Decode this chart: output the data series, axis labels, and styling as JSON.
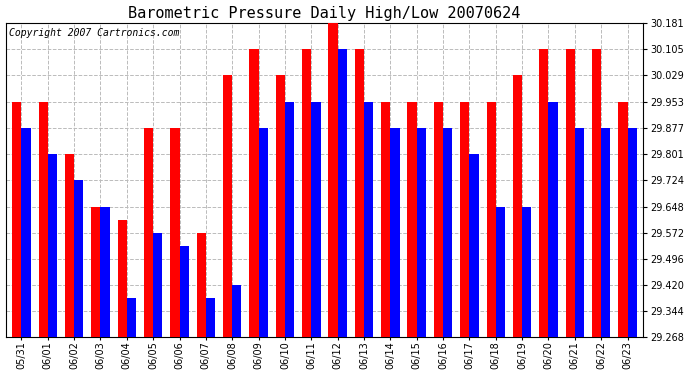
{
  "title": "Barometric Pressure Daily High/Low 20070624",
  "copyright": "Copyright 2007 Cartronics.com",
  "dates": [
    "05/31",
    "06/01",
    "06/02",
    "06/03",
    "06/04",
    "06/05",
    "06/06",
    "06/07",
    "06/08",
    "06/09",
    "06/10",
    "06/11",
    "06/12",
    "06/13",
    "06/14",
    "06/15",
    "06/16",
    "06/17",
    "06/18",
    "06/19",
    "06/20",
    "06/21",
    "06/22",
    "06/23"
  ],
  "highs": [
    29.953,
    29.953,
    29.801,
    29.648,
    29.61,
    29.877,
    29.877,
    29.572,
    30.029,
    30.105,
    30.029,
    30.105,
    30.181,
    30.105,
    29.953,
    29.953,
    29.953,
    29.953,
    29.953,
    30.029,
    30.105,
    30.105,
    30.105,
    29.953
  ],
  "lows": [
    29.877,
    29.801,
    29.724,
    29.648,
    29.382,
    29.572,
    29.534,
    29.382,
    29.42,
    29.877,
    29.953,
    29.953,
    30.105,
    29.953,
    29.877,
    29.877,
    29.877,
    29.801,
    29.648,
    29.648,
    29.953,
    29.877,
    29.877,
    29.877
  ],
  "high_color": "#ff0000",
  "low_color": "#0000ff",
  "bg_color": "#ffffff",
  "plot_bg_color": "#ffffff",
  "grid_color": "#bbbbbb",
  "ymin": 29.268,
  "ymax": 30.181,
  "yticks": [
    29.268,
    29.344,
    29.42,
    29.496,
    29.572,
    29.648,
    29.724,
    29.801,
    29.877,
    29.953,
    30.029,
    30.105,
    30.181
  ],
  "bar_width": 0.35,
  "title_fontsize": 11,
  "tick_fontsize": 7,
  "copyright_fontsize": 7
}
